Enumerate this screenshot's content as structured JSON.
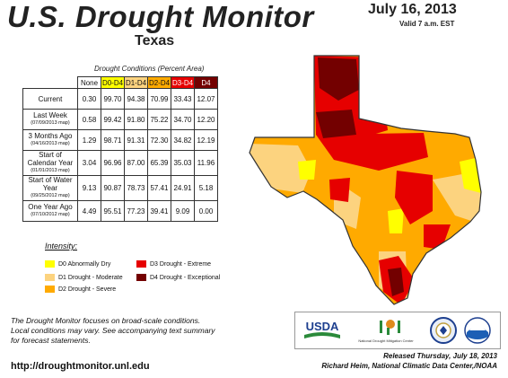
{
  "header": {
    "title": "U.S. Drought Monitor",
    "state": "Texas",
    "date": "July 16, 2013",
    "valid": "Valid 7 a.m. EST"
  },
  "table": {
    "caption": "Drought Conditions (Percent Area)",
    "columns": [
      "None",
      "D0-D4",
      "D1-D4",
      "D2-D4",
      "D3-D4",
      "D4"
    ],
    "rows": [
      {
        "label": "Current",
        "sub": "",
        "values": [
          "0.30",
          "99.70",
          "94.38",
          "70.99",
          "33.43",
          "12.07"
        ]
      },
      {
        "label": "Last Week",
        "sub": "(07/09/2013 map)",
        "values": [
          "0.58",
          "99.42",
          "91.80",
          "75.22",
          "34.70",
          "12.20"
        ]
      },
      {
        "label": "3 Months Ago",
        "sub": "(04/16/2013 map)",
        "values": [
          "1.29",
          "98.71",
          "91.31",
          "72.30",
          "34.82",
          "12.19"
        ]
      },
      {
        "label": "Start of Calendar Year",
        "sub": "(01/01/2013 map)",
        "values": [
          "3.04",
          "96.96",
          "87.00",
          "65.39",
          "35.03",
          "11.96"
        ]
      },
      {
        "label": "Start of Water Year",
        "sub": "(09/25/2012 map)",
        "values": [
          "9.13",
          "90.87",
          "78.73",
          "57.41",
          "24.91",
          "5.18"
        ]
      },
      {
        "label": "One Year Ago",
        "sub": "(07/10/2012 map)",
        "values": [
          "4.49",
          "95.51",
          "77.23",
          "39.41",
          "9.09",
          "0.00"
        ]
      }
    ]
  },
  "legend": {
    "title": "Intensity:",
    "items": [
      {
        "label": "D0 Abnormally Dry",
        "color": "#ffff00"
      },
      {
        "label": "D1 Drought - Moderate",
        "color": "#fcd37f"
      },
      {
        "label": "D2 Drought - Severe",
        "color": "#ffaa00"
      },
      {
        "label": "D3 Drought - Extreme",
        "color": "#e60000"
      },
      {
        "label": "D4 Drought - Exceptional",
        "color": "#730000"
      }
    ]
  },
  "footer": {
    "note_line1": "The Drought Monitor focuses on broad-scale conditions.",
    "note_line2": "Local conditions may vary. See accompanying text summary",
    "note_line3": "for forecast statements.",
    "url": "http://droughtmonitor.unl.edu",
    "released_line1": "Released Thursday, July 18, 2013",
    "released_line2": "Richard Heim, National Climatic Data Center,/NOAA"
  },
  "logos": {
    "usda": "USDA",
    "ndmc": "National Drought Mitigation Center"
  }
}
